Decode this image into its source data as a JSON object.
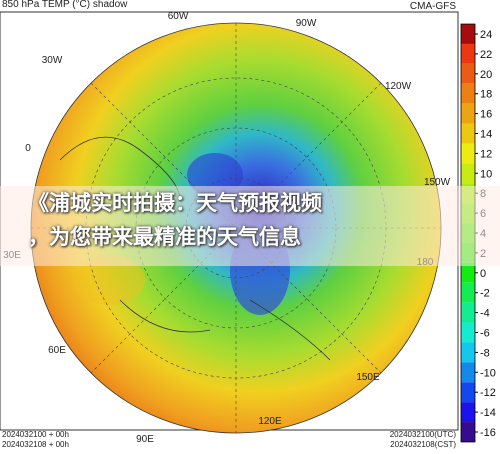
{
  "header": {
    "title": "850 hPa TEMP (°C) shadow",
    "model": "CMA-GFS"
  },
  "longitudes": [
    "60W",
    "90W",
    "30W",
    "120W",
    "0",
    "150W",
    "30E",
    "180",
    "60E",
    "150E",
    "90E",
    "120E"
  ],
  "footer": {
    "left": [
      "2024032100 + 00h",
      "2024032108 + 00h"
    ],
    "right": [
      "2024032100(UTC)",
      "2024032108(CST)"
    ]
  },
  "colorbar": {
    "ticks": [
      24,
      22,
      20,
      18,
      16,
      14,
      12,
      10,
      8,
      6,
      4,
      2,
      0,
      -2,
      -4,
      -6,
      -8,
      -10,
      -12,
      -14,
      -16
    ]
  },
  "banner": {
    "lines": [
      "《浦城实时拍摄：天气预报视频",
      "，为您带来最精准的天气信息"
    ]
  }
}
